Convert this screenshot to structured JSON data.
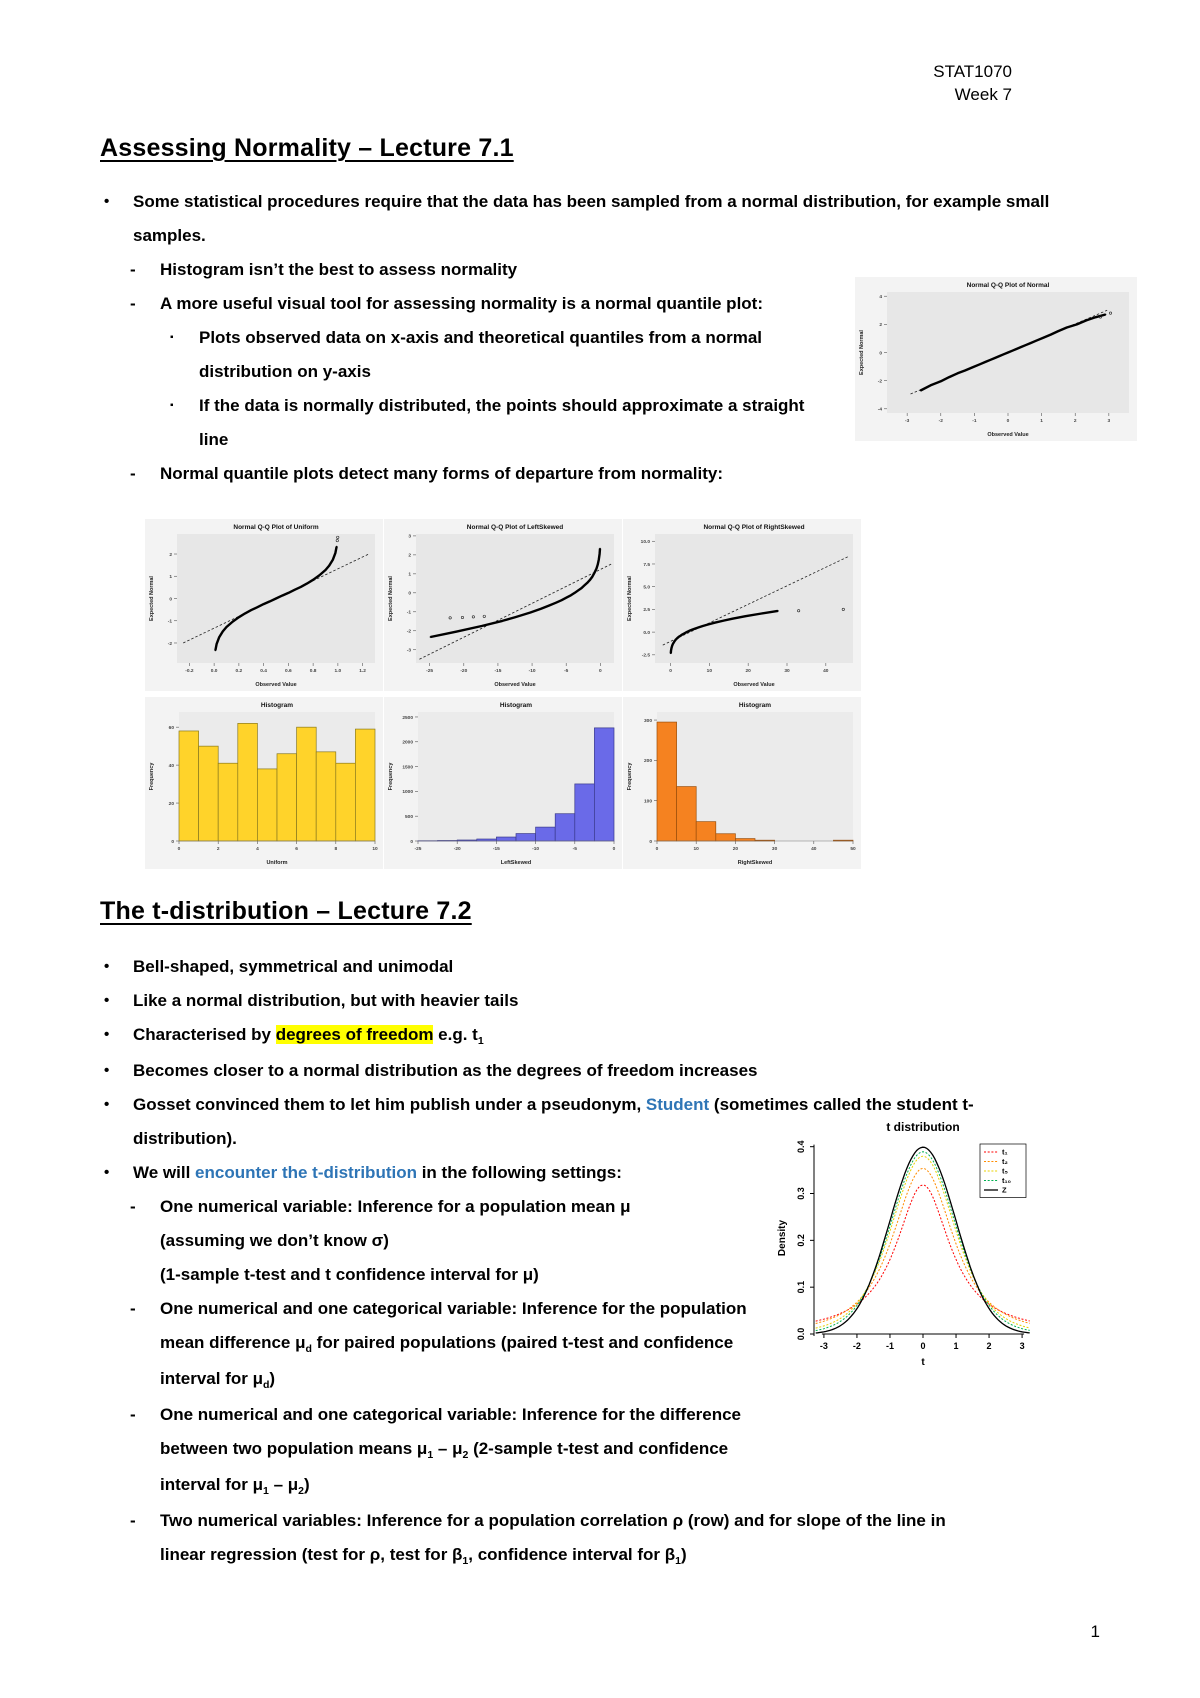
{
  "header": {
    "course": "STAT1070",
    "week": "Week 7"
  },
  "page_number": "1",
  "markers": {
    "l1": "•",
    "l2": "-",
    "l3": "▪"
  },
  "section1": {
    "title": "Assessing Normality – Lecture 7.1",
    "bullet1": "Some statistical procedures require that the data has been sampled from a normal distribution, for example small samples.",
    "dash1": "Histogram isn’t the best to assess normality",
    "dash2": "A more useful visual tool for assessing normality is a normal quantile plot:",
    "sq1": "Plots observed data on x-axis and theoretical quantiles from a normal distribution on y-axis",
    "sq2": "If the data is normally distributed, the points should approximate a straight line",
    "dash3": "Normal quantile plots detect many forms of departure from normality:"
  },
  "section2": {
    "title": "The t-distribution – Lecture 7.2",
    "b1": [
      {
        "t": "Bell-shaped, symmetrical and unimodal"
      }
    ],
    "b2": [
      {
        "t": "Like a normal distribution, but with heavier tails"
      }
    ],
    "b3": [
      {
        "t": "Characterised by "
      },
      {
        "t": "degrees of freedom",
        "s": "hl"
      },
      {
        "t": " e.g. t"
      },
      {
        "t": "1",
        "s": "sub"
      }
    ],
    "b4": [
      {
        "t": "Becomes closer to a normal distribution as the degrees of freedom increases"
      }
    ],
    "b5": [
      {
        "t": "Gosset convinced them to let him publish under a pseudonym, "
      },
      {
        "t": "Student",
        "s": "link"
      },
      {
        "t": " (sometimes called the student t-distribution)."
      }
    ],
    "b6": [
      {
        "t": "We will "
      },
      {
        "t": "encounter the t-distribution",
        "s": "link"
      },
      {
        "t": " in the following settings:"
      }
    ],
    "d1": [
      {
        "t": "One numerical variable: Inference for a population mean μ"
      },
      {
        "t": "(assuming we don’t know σ)",
        "br": true
      },
      {
        "t": "(1-sample t-test and t confidence interval for μ)",
        "br": true
      }
    ],
    "d2": [
      {
        "t": "One numerical and one categorical variable: Inference for the population mean difference μ"
      },
      {
        "t": "d",
        "s": "sub"
      },
      {
        "t": " for paired populations (paired t-test and confidence interval for μ"
      },
      {
        "t": "d",
        "s": "sub"
      },
      {
        "t": ")"
      }
    ],
    "d3": [
      {
        "t": "One numerical and one categorical variable: Inference for the difference between two population means μ"
      },
      {
        "t": "1",
        "s": "sub"
      },
      {
        "t": " – μ"
      },
      {
        "t": "2",
        "s": "sub"
      },
      {
        "t": " (2-sample t-test and confidence interval for μ"
      },
      {
        "t": "1",
        "s": "sub"
      },
      {
        "t": " – μ"
      },
      {
        "t": "2",
        "s": "sub"
      },
      {
        "t": ")"
      }
    ],
    "d4": [
      {
        "t": "Two numerical variables: Inference for a population correlation ρ (row) and for slope of the line in linear regression (test for ρ, test for β"
      },
      {
        "t": "1",
        "s": "sub"
      },
      {
        "t": ", confidence interval for β"
      },
      {
        "t": "1",
        "s": "sub"
      },
      {
        "t": ")"
      }
    ]
  },
  "colors": {
    "highlight": "#FFFF00",
    "link_blue": "#2E75B6",
    "hist_uniform": "#FFD32A",
    "hist_leftskewed": "#6A6AE8",
    "hist_rightskewed": "#F58220"
  },
  "chart_data": [
    {
      "type": "qq",
      "title": "Normal Q-Q Plot of Normal",
      "xlabel": "Observed Value",
      "ylabel": "Expected Normal",
      "xlim": [
        -3.6,
        3.6
      ],
      "ylim": [
        -4.3,
        4.3
      ],
      "xticks": [
        [
          -3,
          "-3"
        ],
        [
          -2,
          "-2"
        ],
        [
          -1,
          "-1"
        ],
        [
          0,
          "0"
        ],
        [
          1,
          "1"
        ],
        [
          2,
          "2"
        ],
        [
          3,
          "3"
        ]
      ],
      "yticks": [
        [
          -4,
          "-4"
        ],
        [
          -2,
          "-2"
        ],
        [
          0,
          "0"
        ],
        [
          2,
          "2"
        ],
        [
          4,
          "4"
        ]
      ],
      "refline": [
        [
          -2.9,
          -2.95
        ],
        [
          2.95,
          3.0
        ]
      ],
      "points": [
        [
          -2.6,
          -2.7
        ],
        [
          -2.3,
          -2.33
        ],
        [
          -2.0,
          -2.05
        ],
        [
          -1.75,
          -1.75
        ],
        [
          -1.5,
          -1.48
        ],
        [
          -1.28,
          -1.28
        ],
        [
          -1.04,
          -1.04
        ],
        [
          -0.84,
          -0.84
        ],
        [
          -0.67,
          -0.67
        ],
        [
          -0.52,
          -0.52
        ],
        [
          -0.39,
          -0.39
        ],
        [
          -0.25,
          -0.25
        ],
        [
          -0.13,
          -0.13
        ],
        [
          0,
          0
        ],
        [
          0.13,
          0.13
        ],
        [
          0.25,
          0.25
        ],
        [
          0.39,
          0.39
        ],
        [
          0.52,
          0.52
        ],
        [
          0.67,
          0.67
        ],
        [
          0.84,
          0.84
        ],
        [
          1.04,
          1.04
        ],
        [
          1.28,
          1.28
        ],
        [
          1.48,
          1.5
        ],
        [
          1.75,
          1.78
        ],
        [
          2.05,
          2.0
        ],
        [
          2.33,
          2.28
        ],
        [
          2.6,
          2.5
        ],
        [
          2.9,
          2.7
        ]
      ],
      "outliers": [
        [
          2.75,
          2.52
        ],
        [
          3.05,
          2.8
        ]
      ]
    },
    {
      "type": "qq",
      "title": "Normal Q-Q Plot of Uniform",
      "xlabel": "Observed Value",
      "ylabel": "Expected Normal",
      "xlim": [
        -0.3,
        1.3
      ],
      "ylim": [
        -2.9,
        2.9
      ],
      "xticks": [
        [
          -0.2,
          "-0.2"
        ],
        [
          0,
          "0.0"
        ],
        [
          0.2,
          "0.2"
        ],
        [
          0.4,
          "0.4"
        ],
        [
          0.6,
          "0.6"
        ],
        [
          0.8,
          "0.8"
        ],
        [
          1,
          "1.0"
        ],
        [
          1.2,
          "1.2"
        ]
      ],
      "yticks": [
        [
          -2,
          "-2"
        ],
        [
          -1,
          "-1"
        ],
        [
          0,
          "0"
        ],
        [
          1,
          "1"
        ],
        [
          2,
          "2"
        ]
      ],
      "refline": [
        [
          -0.25,
          -2.0
        ],
        [
          1.25,
          2.0
        ]
      ],
      "points": [
        [
          0.01,
          -2.33
        ],
        [
          0.02,
          -2.05
        ],
        [
          0.04,
          -1.75
        ],
        [
          0.07,
          -1.48
        ],
        [
          0.1,
          -1.28
        ],
        [
          0.15,
          -1.04
        ],
        [
          0.2,
          -0.84
        ],
        [
          0.25,
          -0.67
        ],
        [
          0.3,
          -0.52
        ],
        [
          0.35,
          -0.39
        ],
        [
          0.4,
          -0.25
        ],
        [
          0.45,
          -0.13
        ],
        [
          0.5,
          0
        ],
        [
          0.55,
          0.13
        ],
        [
          0.6,
          0.25
        ],
        [
          0.65,
          0.39
        ],
        [
          0.7,
          0.52
        ],
        [
          0.75,
          0.67
        ],
        [
          0.8,
          0.84
        ],
        [
          0.85,
          1.04
        ],
        [
          0.9,
          1.28
        ],
        [
          0.93,
          1.48
        ],
        [
          0.96,
          1.75
        ],
        [
          0.98,
          2.05
        ],
        [
          0.99,
          2.33
        ]
      ],
      "outliers": [
        [
          0.995,
          2.6
        ],
        [
          0.999,
          2.75
        ]
      ]
    },
    {
      "type": "qq",
      "title": "Normal Q-Q Plot of LeftSkewed",
      "xlabel": "Observed Value",
      "ylabel": "Expected Normal",
      "xlim": [
        -27,
        2
      ],
      "ylim": [
        -3.7,
        3.1
      ],
      "xticks": [
        [
          -25,
          "-25"
        ],
        [
          -20,
          "-20"
        ],
        [
          -15,
          "-15"
        ],
        [
          -10,
          "-10"
        ],
        [
          -5,
          "-5"
        ],
        [
          0,
          "0"
        ]
      ],
      "yticks": [
        [
          -3,
          "-3"
        ],
        [
          -2,
          "-2"
        ],
        [
          -1,
          "-1"
        ],
        [
          0,
          "0"
        ],
        [
          1,
          "1"
        ],
        [
          2,
          "2"
        ],
        [
          3,
          "3"
        ]
      ],
      "refline": [
        [
          -26.5,
          -3.5
        ],
        [
          1.8,
          1.55
        ]
      ],
      "points": [
        [
          -24.87,
          -2.33
        ],
        [
          -21.13,
          -2.05
        ],
        [
          -17.38,
          -1.75
        ],
        [
          -14.36,
          -1.48
        ],
        [
          -12.43,
          -1.28
        ],
        [
          -10.24,
          -1.04
        ],
        [
          -8.69,
          -0.84
        ],
        [
          -7.49,
          -0.67
        ],
        [
          -6.5,
          -0.52
        ],
        [
          -5.67,
          -0.39
        ],
        [
          -4.95,
          -0.25
        ],
        [
          -4.31,
          -0.13
        ],
        [
          -3.74,
          0
        ],
        [
          -3.23,
          0.13
        ],
        [
          -2.76,
          0.25
        ],
        [
          -2.33,
          0.39
        ],
        [
          -1.93,
          0.52
        ],
        [
          -1.55,
          0.67
        ],
        [
          -1.2,
          0.84
        ],
        [
          -0.88,
          1.04
        ],
        [
          -0.57,
          1.28
        ],
        [
          -0.39,
          1.48
        ],
        [
          -0.22,
          1.75
        ],
        [
          -0.11,
          2.05
        ],
        [
          -0.05,
          2.33
        ]
      ],
      "outliers": [
        [
          -22,
          -1.32
        ],
        [
          -20.2,
          -1.3
        ],
        [
          -18.6,
          -1.27
        ],
        [
          -17,
          -1.24
        ]
      ]
    },
    {
      "type": "qq",
      "title": "Normal Q-Q Plot of RightSkewed",
      "xlabel": "Observed Value",
      "ylabel": "Expected Normal",
      "xlim": [
        -4,
        47
      ],
      "ylim": [
        -3.4,
        10.8
      ],
      "xticks": [
        [
          0,
          "0"
        ],
        [
          10,
          "10"
        ],
        [
          20,
          "20"
        ],
        [
          30,
          "30"
        ],
        [
          40,
          "40"
        ]
      ],
      "yticks": [
        [
          10,
          "10.0"
        ],
        [
          7.5,
          "7.5"
        ],
        [
          5,
          "5.0"
        ],
        [
          2.5,
          "2.5"
        ],
        [
          0,
          "0.0"
        ],
        [
          -2.5,
          "-2.5"
        ]
      ],
      "refline": [
        [
          -2,
          -1.43
        ],
        [
          46,
          8.36
        ]
      ],
      "points": [
        [
          0.06,
          -2.33
        ],
        [
          0.12,
          -2.05
        ],
        [
          0.24,
          -1.75
        ],
        [
          0.44,
          -1.48
        ],
        [
          0.63,
          -1.28
        ],
        [
          0.98,
          -1.04
        ],
        [
          1.34,
          -0.84
        ],
        [
          1.73,
          -0.67
        ],
        [
          2.14,
          -0.52
        ],
        [
          2.58,
          -0.39
        ],
        [
          3.06,
          -0.25
        ],
        [
          3.59,
          -0.13
        ],
        [
          4.16,
          0
        ],
        [
          4.79,
          0.13
        ],
        [
          5.5,
          0.25
        ],
        [
          6.3,
          0.39
        ],
        [
          7.22,
          0.52
        ],
        [
          8.32,
          0.67
        ],
        [
          9.66,
          0.84
        ],
        [
          11.38,
          1.04
        ],
        [
          13.82,
          1.28
        ],
        [
          15.95,
          1.48
        ],
        [
          19.31,
          1.75
        ],
        [
          23.47,
          2.05
        ],
        [
          27.63,
          2.33
        ]
      ],
      "outliers": [
        [
          33,
          2.35
        ],
        [
          44.5,
          2.5
        ]
      ]
    },
    {
      "type": "hist",
      "title": "Histogram",
      "xlabel": "Uniform",
      "ylabel": "Frequency",
      "bin_start": 0,
      "bin_width": 1,
      "values": [
        58,
        50,
        41,
        62,
        38,
        46,
        60,
        47,
        41,
        59
      ],
      "xticks": [
        [
          0,
          "0"
        ],
        [
          2,
          "2"
        ],
        [
          4,
          "4"
        ],
        [
          6,
          "6"
        ],
        [
          8,
          "8"
        ],
        [
          10,
          "10"
        ]
      ],
      "ylim": [
        0,
        68
      ],
      "yticks": [
        [
          0,
          "0"
        ],
        [
          20,
          "20"
        ],
        [
          40,
          "40"
        ],
        [
          60,
          "60"
        ]
      ],
      "color": "#FFD32A",
      "edge": "#8A7A1E"
    },
    {
      "type": "hist",
      "title": "Histogram",
      "xlabel": "LeftSkewed",
      "ylabel": "Frequency",
      "bin_start": -25,
      "bin_width": 2.5,
      "values": [
        5,
        10,
        20,
        40,
        80,
        150,
        280,
        550,
        1150,
        2280
      ],
      "xticks": [
        [
          -25,
          "-25"
        ],
        [
          -20,
          "-20"
        ],
        [
          -15,
          "-15"
        ],
        [
          -10,
          "-10"
        ],
        [
          -5,
          "-5"
        ],
        [
          0,
          "0"
        ]
      ],
      "ylim": [
        0,
        2600
      ],
      "yticks": [
        [
          0,
          "0"
        ],
        [
          500,
          "500"
        ],
        [
          1000,
          "1000"
        ],
        [
          1500,
          "1500"
        ],
        [
          2000,
          "2000"
        ],
        [
          2500,
          "2500"
        ]
      ],
      "color": "#6A6AE8",
      "edge": "#3A3A8C"
    },
    {
      "type": "hist",
      "title": "Histogram",
      "xlabel": "RightSkewed",
      "ylabel": "Frequency",
      "bin_start": 0,
      "bin_width": 5,
      "values": [
        295,
        135,
        48,
        18,
        6,
        2,
        0,
        0,
        0,
        2
      ],
      "xticks": [
        [
          0,
          "0"
        ],
        [
          10,
          "10"
        ],
        [
          20,
          "20"
        ],
        [
          30,
          "30"
        ],
        [
          40,
          "40"
        ],
        [
          50,
          "50"
        ]
      ],
      "ylim": [
        0,
        320
      ],
      "yticks": [
        [
          0,
          "0"
        ],
        [
          100,
          "100"
        ],
        [
          200,
          "200"
        ],
        [
          300,
          "300"
        ]
      ],
      "color": "#F58220",
      "edge": "#9C4F0A"
    },
    {
      "type": "tcurves",
      "title": "t distribution",
      "xlabel": "t",
      "ylabel": "Density",
      "xlim": [
        -3.3,
        3.3
      ],
      "ylim": [
        0,
        0.41
      ],
      "xticks": [
        [
          -3,
          "-3"
        ],
        [
          -2,
          "-2"
        ],
        [
          -1,
          "-1"
        ],
        [
          0,
          "0"
        ],
        [
          1,
          "1"
        ],
        [
          2,
          "2"
        ],
        [
          3,
          "3"
        ]
      ],
      "yticks": [
        [
          0,
          "0.0"
        ],
        [
          0.1,
          "0.1"
        ],
        [
          0.2,
          "0.2"
        ],
        [
          0.3,
          "0.3"
        ],
        [
          0.4,
          "0.4"
        ]
      ],
      "series": [
        {
          "label": "t₁",
          "df": 1,
          "peak": 0.3183,
          "color": "#FF0000",
          "solid": false
        },
        {
          "label": "t₂",
          "df": 2,
          "peak": 0.3536,
          "color": "#FF8C00",
          "solid": false
        },
        {
          "label": "t₅",
          "df": 5,
          "peak": 0.3796,
          "color": "#E8D000",
          "solid": false
        },
        {
          "label": "t₁₀",
          "df": 10,
          "peak": 0.3891,
          "color": "#00B050",
          "solid": false
        },
        {
          "label": "Z",
          "df": 400,
          "peak": 0.3989,
          "color": "#000000",
          "solid": true
        }
      ]
    }
  ]
}
